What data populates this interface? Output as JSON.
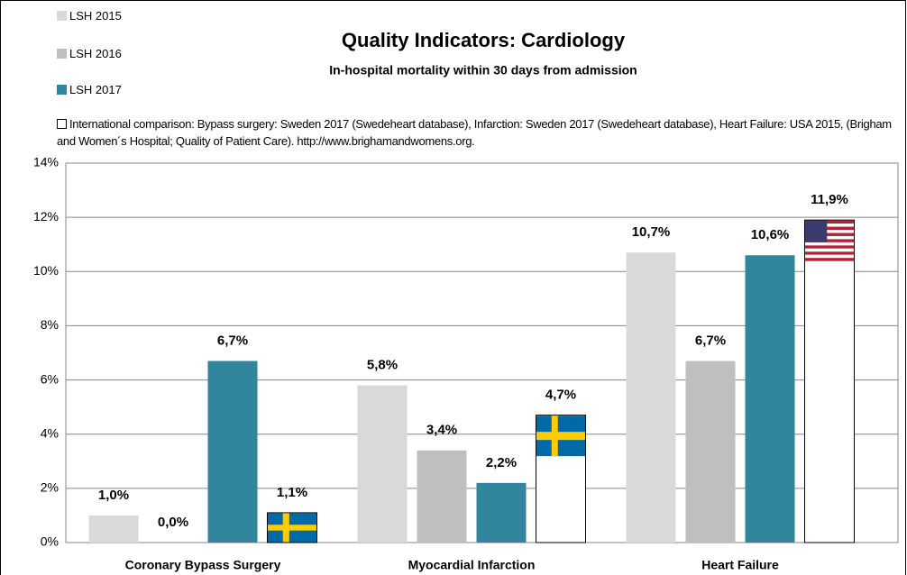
{
  "chart_data": {
    "type": "bar",
    "title": "Quality Indicators: Cardiology",
    "subtitle": "In-hospital mortality within 30 days from admission",
    "categories": [
      "Coronary  Bypass Surgery",
      "Myocardial Infarction",
      "Heart Failure"
    ],
    "series": [
      {
        "name": "LSH 2015",
        "color": "#d9d9d9",
        "values": [
          1.0,
          5.8,
          10.7
        ],
        "value_labels": [
          "1,0%",
          "5,8%",
          "10,7%"
        ]
      },
      {
        "name": "LSH 2016",
        "color": "#bfbfbf",
        "values": [
          0.0,
          3.4,
          6.7
        ],
        "value_labels": [
          "0,0%",
          "3,4%",
          "6,7%"
        ]
      },
      {
        "name": "LSH 2017",
        "color": "#31859c",
        "values": [
          6.7,
          2.2,
          10.6
        ],
        "value_labels": [
          "6,7%",
          "2,2%",
          "10,6%"
        ]
      },
      {
        "name": "International comparison: Bypass surgery: Sweden 2017 (Swedeheart database), Infarction: Sweden 2017 (Swedeheart database), Heart Failure: USA 2015, (Brigham and Women´s Hospital; Quality of Patient Care). http://www.brighamandwomens.org.",
        "color": "#ffffff",
        "values": [
          1.1,
          4.7,
          11.9
        ],
        "value_labels": [
          "1,1%",
          "4,7%",
          "11,9%"
        ]
      }
    ],
    "ylim": [
      0,
      14
    ],
    "yticks": [
      {
        "value": 0,
        "label": "0%"
      },
      {
        "value": 2,
        "label": "2%"
      },
      {
        "value": 4,
        "label": "4%"
      },
      {
        "value": 6,
        "label": "6%"
      },
      {
        "value": 8,
        "label": "8%"
      },
      {
        "value": 10,
        "label": "10%"
      },
      {
        "value": 12,
        "label": "12%"
      },
      {
        "value": 14,
        "label": "14%"
      }
    ],
    "grid": true,
    "legend": "top-left"
  }
}
